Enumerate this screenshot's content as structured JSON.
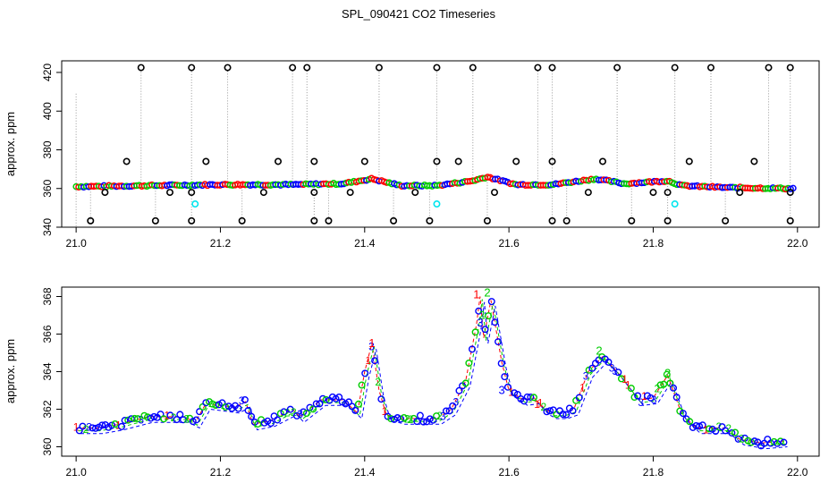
{
  "figure": {
    "title": "SPL_090421  CO2 Timeseries"
  },
  "colors": {
    "series1": "#ff0000",
    "series2": "#00cc00",
    "series3": "#0000ff",
    "outlier": "#000000",
    "flagged": "#00e5ee",
    "guide": "#999999"
  },
  "chart_data": [
    {
      "type": "scatter",
      "name": "raw-timeseries",
      "title": "",
      "xlabel": "",
      "ylabel": "approx. ppm",
      "xlim": [
        20.98,
        22.03
      ],
      "ylim": [
        340,
        426
      ],
      "xticks": [
        "21.0",
        "21.2",
        "21.4",
        "21.6",
        "21.8",
        "22.0"
      ],
      "yticks": [
        "340",
        "360",
        "380",
        "400",
        "420"
      ],
      "baseline": {
        "x": [
          21.0,
          21.1,
          21.2,
          21.3,
          21.37,
          21.41,
          21.45,
          21.5,
          21.55,
          21.57,
          21.61,
          21.66,
          21.72,
          21.76,
          21.82,
          21.84,
          21.9,
          21.99
        ],
        "y": [
          361,
          361.5,
          362,
          362,
          362.5,
          365,
          361.5,
          361.5,
          364,
          366,
          362,
          362,
          365,
          362.5,
          364,
          361.5,
          360.5,
          360
        ]
      },
      "outliers_high": [
        21.09,
        21.16,
        21.21,
        21.3,
        21.32,
        21.42,
        21.5,
        21.55,
        21.64,
        21.66,
        21.75,
        21.83,
        21.88,
        21.96,
        21.99
      ],
      "outliers_low": [
        21.02,
        21.11,
        21.16,
        21.23,
        21.33,
        21.35,
        21.44,
        21.49,
        21.57,
        21.66,
        21.68,
        21.77,
        21.82,
        21.9,
        21.99
      ],
      "outliers_mid": [
        {
          "x": 21.07,
          "y": 374
        },
        {
          "x": 21.18,
          "y": 374
        },
        {
          "x": 21.28,
          "y": 374
        },
        {
          "x": 21.33,
          "y": 374
        },
        {
          "x": 21.4,
          "y": 374
        },
        {
          "x": 21.5,
          "y": 374
        },
        {
          "x": 21.53,
          "y": 374
        },
        {
          "x": 21.61,
          "y": 374
        },
        {
          "x": 21.66,
          "y": 374
        },
        {
          "x": 21.73,
          "y": 374
        },
        {
          "x": 21.85,
          "y": 374
        },
        {
          "x": 21.94,
          "y": 374
        },
        {
          "x": 21.04,
          "y": 358
        },
        {
          "x": 21.13,
          "y": 358
        },
        {
          "x": 21.16,
          "y": 358
        },
        {
          "x": 21.26,
          "y": 358
        },
        {
          "x": 21.33,
          "y": 358
        },
        {
          "x": 21.38,
          "y": 358
        },
        {
          "x": 21.47,
          "y": 358
        },
        {
          "x": 21.58,
          "y": 358
        },
        {
          "x": 21.71,
          "y": 358
        },
        {
          "x": 21.8,
          "y": 358
        },
        {
          "x": 21.82,
          "y": 358
        },
        {
          "x": 21.92,
          "y": 358
        },
        {
          "x": 21.99,
          "y": 358
        }
      ],
      "flagged": [
        {
          "x": 21.165,
          "y": 352
        },
        {
          "x": 21.5,
          "y": 352
        },
        {
          "x": 21.83,
          "y": 352
        }
      ]
    },
    {
      "type": "scatter",
      "name": "filtered-timeseries",
      "title": "",
      "xlabel": "",
      "ylabel": "approx. ppm",
      "xlim": [
        20.98,
        22.03
      ],
      "ylim": [
        359.5,
        368.5
      ],
      "xticks": [
        "21.0",
        "21.2",
        "21.4",
        "21.6",
        "21.8",
        "22.0"
      ],
      "yticks": [
        "360",
        "362",
        "364",
        "366",
        "368"
      ],
      "series": [
        {
          "name": "1",
          "marker": "1"
        },
        {
          "name": "2",
          "marker": "2"
        },
        {
          "name": "3",
          "marker": "3"
        }
      ],
      "x": [
        21.0,
        21.03,
        21.06,
        21.1,
        21.15,
        21.165,
        21.18,
        21.22,
        21.235,
        21.245,
        21.27,
        21.3,
        21.31,
        21.34,
        21.37,
        21.39,
        21.4,
        21.41,
        21.42,
        21.43,
        21.45,
        21.5,
        21.52,
        21.54,
        21.555,
        21.56,
        21.565,
        21.575,
        21.59,
        21.6,
        21.62,
        21.635,
        21.65,
        21.66,
        21.675,
        21.69,
        21.71,
        21.73,
        21.75,
        21.78,
        21.8,
        21.82,
        21.84,
        21.86,
        21.9,
        21.92,
        21.95,
        21.98
      ],
      "y": [
        361.0,
        361.0,
        361.2,
        361.6,
        361.6,
        361.3,
        362.3,
        362.1,
        362.4,
        361.2,
        361.4,
        362.0,
        361.6,
        362.5,
        362.5,
        361.8,
        364.0,
        365.5,
        363.0,
        361.7,
        361.5,
        361.5,
        362.0,
        363.5,
        366.5,
        368.0,
        365.8,
        367.8,
        364.5,
        363.0,
        362.5,
        362.6,
        362.0,
        361.8,
        361.8,
        362.0,
        364.0,
        364.8,
        364.0,
        362.5,
        362.6,
        363.8,
        361.7,
        361.0,
        361.0,
        360.4,
        360.2,
        360.3
      ]
    }
  ]
}
